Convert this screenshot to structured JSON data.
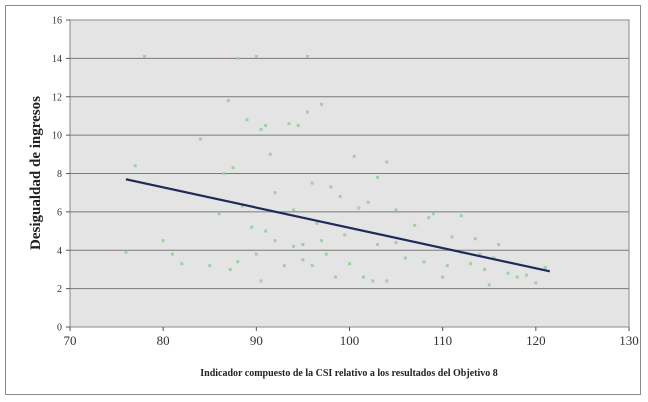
{
  "chart_data": {
    "type": "scatter",
    "title": "",
    "xlabel": "Indicador compuesto  de la CSI relativo  a los resultados del Objetivo  8",
    "ylabel": "Desigualdad de ingresos",
    "xlim": [
      70,
      130
    ],
    "ylim": [
      0,
      16
    ],
    "xticks": [
      70,
      80,
      90,
      100,
      110,
      120,
      130
    ],
    "yticks": [
      0,
      2,
      4,
      6,
      8,
      10,
      12,
      14,
      16
    ],
    "grid": true,
    "legend": "none",
    "colors": {
      "plot_bg": "#e4e4e4",
      "grid": "#7a7a7a",
      "points": "#9fd0a6",
      "trend": "#1f2a5a"
    },
    "series": [
      {
        "values": [
          {
            "x": 76,
            "y": 3.9
          },
          {
            "x": 77,
            "y": 8.4
          },
          {
            "x": 78,
            "y": 14.1
          },
          {
            "x": 80,
            "y": 4.5
          },
          {
            "x": 81,
            "y": 3.8
          },
          {
            "x": 82,
            "y": 3.3
          },
          {
            "x": 84,
            "y": 9.8
          },
          {
            "x": 85,
            "y": 3.2
          },
          {
            "x": 86,
            "y": 5.9
          },
          {
            "x": 86.5,
            "y": 8.0
          },
          {
            "x": 87,
            "y": 11.8
          },
          {
            "x": 87.2,
            "y": 3.0
          },
          {
            "x": 87.5,
            "y": 8.3
          },
          {
            "x": 88,
            "y": 3.4
          },
          {
            "x": 88,
            "y": 14.0
          },
          {
            "x": 88.5,
            "y": 6.3
          },
          {
            "x": 89,
            "y": 10.8
          },
          {
            "x": 89.5,
            "y": 5.2
          },
          {
            "x": 90,
            "y": 14.1
          },
          {
            "x": 90,
            "y": 3.8
          },
          {
            "x": 90.5,
            "y": 2.4
          },
          {
            "x": 90.5,
            "y": 10.3
          },
          {
            "x": 91,
            "y": 10.5
          },
          {
            "x": 91,
            "y": 5.0
          },
          {
            "x": 91.5,
            "y": 9.0
          },
          {
            "x": 92,
            "y": 4.5
          },
          {
            "x": 92,
            "y": 7.0
          },
          {
            "x": 93,
            "y": 3.2
          },
          {
            "x": 93.5,
            "y": 10.6
          },
          {
            "x": 94,
            "y": 4.2
          },
          {
            "x": 94,
            "y": 6.1
          },
          {
            "x": 94.5,
            "y": 10.5
          },
          {
            "x": 95,
            "y": 3.5
          },
          {
            "x": 95,
            "y": 4.3
          },
          {
            "x": 95.5,
            "y": 14.1
          },
          {
            "x": 95.5,
            "y": 11.2
          },
          {
            "x": 96,
            "y": 7.5
          },
          {
            "x": 96,
            "y": 3.2
          },
          {
            "x": 96.5,
            "y": 5.4
          },
          {
            "x": 97,
            "y": 11.6
          },
          {
            "x": 97,
            "y": 4.5
          },
          {
            "x": 97.5,
            "y": 3.8
          },
          {
            "x": 98,
            "y": 7.3
          },
          {
            "x": 98.5,
            "y": 2.6
          },
          {
            "x": 99,
            "y": 6.8
          },
          {
            "x": 99.5,
            "y": 4.8
          },
          {
            "x": 100,
            "y": 3.3
          },
          {
            "x": 100.5,
            "y": 8.9
          },
          {
            "x": 101,
            "y": 6.2
          },
          {
            "x": 101.5,
            "y": 2.6
          },
          {
            "x": 102,
            "y": 6.5
          },
          {
            "x": 102.5,
            "y": 2.4
          },
          {
            "x": 103,
            "y": 7.8
          },
          {
            "x": 103,
            "y": 4.3
          },
          {
            "x": 104,
            "y": 8.6
          },
          {
            "x": 104,
            "y": 2.4
          },
          {
            "x": 105,
            "y": 6.1
          },
          {
            "x": 105,
            "y": 4.4
          },
          {
            "x": 106,
            "y": 3.6
          },
          {
            "x": 107,
            "y": 5.3
          },
          {
            "x": 108,
            "y": 3.4
          },
          {
            "x": 108.5,
            "y": 5.7
          },
          {
            "x": 109,
            "y": 5.9
          },
          {
            "x": 110,
            "y": 2.6
          },
          {
            "x": 110.5,
            "y": 3.2
          },
          {
            "x": 111,
            "y": 4.7
          },
          {
            "x": 112,
            "y": 3.9
          },
          {
            "x": 112,
            "y": 5.8
          },
          {
            "x": 113,
            "y": 3.3
          },
          {
            "x": 113.5,
            "y": 4.6
          },
          {
            "x": 114,
            "y": 3.8
          },
          {
            "x": 114.5,
            "y": 3.0
          },
          {
            "x": 115,
            "y": 2.2
          },
          {
            "x": 115.5,
            "y": 3.6
          },
          {
            "x": 116,
            "y": 4.3
          },
          {
            "x": 117,
            "y": 2.8
          },
          {
            "x": 118,
            "y": 2.6
          },
          {
            "x": 119,
            "y": 2.7
          },
          {
            "x": 120,
            "y": 2.3
          },
          {
            "x": 121,
            "y": 3.1
          }
        ]
      }
    ],
    "trendline": {
      "x": [
        76,
        121.5
      ],
      "y": [
        7.7,
        2.9
      ]
    }
  }
}
